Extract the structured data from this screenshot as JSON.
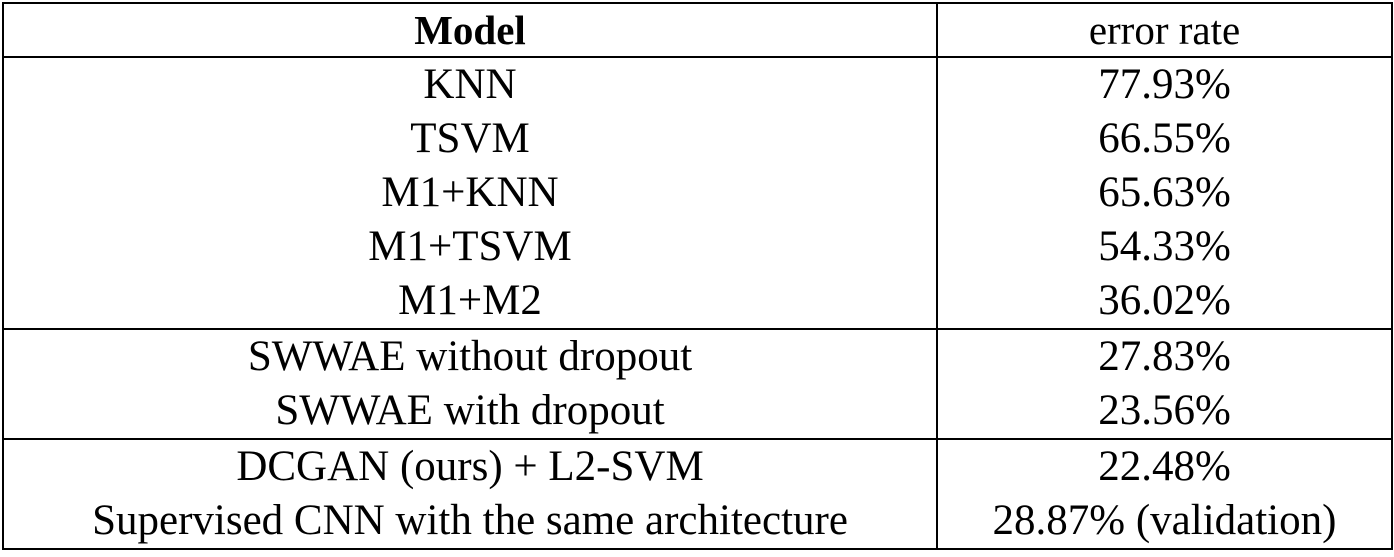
{
  "table": {
    "headers": {
      "model": "Model",
      "error_rate": "error rate"
    },
    "groups": [
      {
        "rows": [
          {
            "model": "KNN",
            "error_rate": "77.93%"
          },
          {
            "model": "TSVM",
            "error_rate": "66.55%"
          },
          {
            "model": "M1+KNN",
            "error_rate": "65.63%"
          },
          {
            "model": "M1+TSVM",
            "error_rate": "54.33%"
          },
          {
            "model": "M1+M2",
            "error_rate": "36.02%"
          }
        ]
      },
      {
        "rows": [
          {
            "model": "SWWAE without dropout",
            "error_rate": "27.83%"
          },
          {
            "model": "SWWAE with dropout",
            "error_rate": "23.56%"
          }
        ]
      },
      {
        "rows": [
          {
            "model": "DCGAN (ours) + L2-SVM",
            "error_rate": "22.48%"
          },
          {
            "model": "Supervised CNN with the same architecture",
            "error_rate": "28.87% (validation)"
          }
        ]
      }
    ]
  }
}
